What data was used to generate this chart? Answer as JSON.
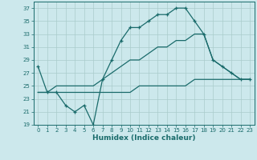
{
  "xlabel": "Humidex (Indice chaleur)",
  "bg_color": "#cce8ec",
  "grid_color": "#aacccc",
  "line_color": "#1a6b6b",
  "xlim": [
    -0.5,
    23.5
  ],
  "ylim": [
    19,
    38
  ],
  "yticks": [
    19,
    21,
    23,
    25,
    27,
    29,
    31,
    33,
    35,
    37
  ],
  "xticks": [
    0,
    1,
    2,
    3,
    4,
    5,
    6,
    7,
    8,
    9,
    10,
    11,
    12,
    13,
    14,
    15,
    16,
    17,
    18,
    19,
    20,
    21,
    22,
    23
  ],
  "curve1_x": [
    0,
    1,
    2,
    3,
    4,
    5,
    6,
    7,
    8,
    9,
    10,
    11,
    12,
    13,
    14,
    15,
    16,
    17,
    18,
    19,
    20,
    21,
    22,
    23
  ],
  "curve1_y": [
    28,
    24,
    24,
    22,
    21,
    22,
    19,
    26,
    29,
    32,
    34,
    34,
    35,
    36,
    36,
    37,
    37,
    35,
    33,
    29,
    28,
    27,
    26,
    26
  ],
  "curve2_x": [
    0,
    1,
    2,
    3,
    4,
    5,
    6,
    7,
    8,
    9,
    10,
    11,
    12,
    13,
    14,
    15,
    16,
    17,
    18,
    19,
    20,
    21,
    22,
    23
  ],
  "curve2_y": [
    24,
    24,
    25,
    25,
    25,
    25,
    25,
    26,
    27,
    28,
    29,
    29,
    30,
    31,
    31,
    32,
    32,
    33,
    33,
    29,
    28,
    27,
    26,
    26
  ],
  "curve3_x": [
    0,
    1,
    2,
    3,
    4,
    5,
    6,
    7,
    8,
    9,
    10,
    11,
    12,
    13,
    14,
    15,
    16,
    17,
    18,
    19,
    20,
    21,
    22,
    23
  ],
  "curve3_y": [
    24,
    24,
    24,
    24,
    24,
    24,
    24,
    24,
    24,
    24,
    24,
    25,
    25,
    25,
    25,
    25,
    25,
    26,
    26,
    26,
    26,
    26,
    26,
    26
  ]
}
